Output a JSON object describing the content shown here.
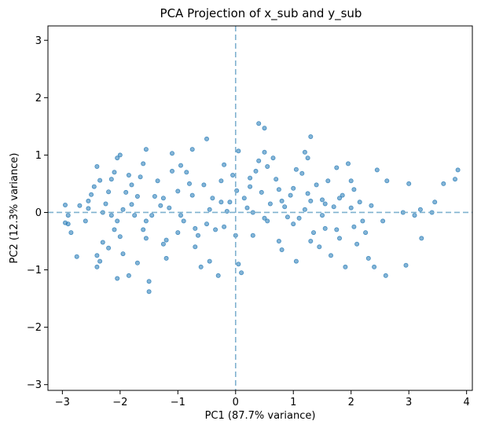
{
  "chart_data": {
    "type": "scatter",
    "title": "PCA Projection of x_sub and y_sub",
    "xlabel": "PC1 (87.7% variance)",
    "ylabel": "PC2 (12.3% variance)",
    "xlim": [
      -3.25,
      4.1
    ],
    "ylim": [
      -3.1,
      3.25
    ],
    "xticks": [
      -3,
      -2,
      -1,
      0,
      1,
      2,
      3,
      4
    ],
    "yticks": [
      -3,
      -2,
      -1,
      0,
      1,
      2,
      3
    ],
    "xtick_labels": [
      "−3",
      "−2",
      "−1",
      "0",
      "1",
      "2",
      "3",
      "4"
    ],
    "ytick_labels": [
      "−3",
      "−2",
      "−1",
      "0",
      "1",
      "2",
      "3"
    ],
    "grid": false,
    "legend": "none",
    "reference_lines": {
      "horizontal_y": 0,
      "vertical_x": 0
    },
    "marker_color": "#1f77b4",
    "reference_line_color": "#7fb1cf",
    "series": [
      {
        "points": [
          [
            -2.95,
            0.13
          ],
          [
            -2.9,
            -0.2
          ],
          [
            -2.85,
            -0.35
          ],
          [
            -2.95,
            -0.18
          ],
          [
            -2.9,
            -0.05
          ],
          [
            -2.75,
            -0.77
          ],
          [
            -2.6,
            -0.15
          ],
          [
            -2.55,
            0.07
          ],
          [
            -2.5,
            0.31
          ],
          [
            -2.45,
            0.45
          ],
          [
            -2.4,
            0.8
          ],
          [
            -2.35,
            0.56
          ],
          [
            -2.4,
            -0.95
          ],
          [
            -2.35,
            -0.85
          ],
          [
            -2.4,
            -0.75
          ],
          [
            -2.3,
            -0.52
          ],
          [
            -2.3,
            0.0
          ],
          [
            -2.25,
            0.15
          ],
          [
            -2.2,
            0.36
          ],
          [
            -2.15,
            0.58
          ],
          [
            -2.1,
            0.7
          ],
          [
            -2.05,
            0.95
          ],
          [
            -2.0,
            1.0
          ],
          [
            -2.1,
            -0.3
          ],
          [
            -2.05,
            -0.15
          ],
          [
            -2.0,
            -0.42
          ],
          [
            -1.95,
            0.05
          ],
          [
            -1.9,
            0.35
          ],
          [
            -1.85,
            0.65
          ],
          [
            -1.8,
            0.48
          ],
          [
            -2.05,
            -1.15
          ],
          [
            -1.85,
            -1.1
          ],
          [
            -1.75,
            -0.05
          ],
          [
            -1.7,
            0.28
          ],
          [
            -1.65,
            0.62
          ],
          [
            -1.6,
            0.85
          ],
          [
            -1.55,
            1.1
          ],
          [
            -1.6,
            -0.3
          ],
          [
            -1.55,
            -0.45
          ],
          [
            -1.5,
            -1.2
          ],
          [
            -1.5,
            -1.38
          ],
          [
            -1.4,
            0.28
          ],
          [
            -1.35,
            0.55
          ],
          [
            -1.3,
            0.12
          ],
          [
            -1.25,
            -0.55
          ],
          [
            -1.2,
            -0.8
          ],
          [
            -1.15,
            0.08
          ],
          [
            -1.1,
            0.72
          ],
          [
            -1.1,
            1.03
          ],
          [
            -1.0,
            0.37
          ],
          [
            -0.95,
            -0.05
          ],
          [
            -0.9,
            -0.15
          ],
          [
            -0.85,
            0.7
          ],
          [
            -0.8,
            0.5
          ],
          [
            -0.75,
            1.1
          ],
          [
            -0.7,
            -0.28
          ],
          [
            -0.65,
            -0.4
          ],
          [
            -0.6,
            -0.95
          ],
          [
            -0.55,
            0.48
          ],
          [
            -0.5,
            1.28
          ],
          [
            -0.45,
            0.05
          ],
          [
            -0.4,
            0.25
          ],
          [
            -0.35,
            -0.3
          ],
          [
            -0.3,
            -1.1
          ],
          [
            -0.25,
            0.55
          ],
          [
            -0.2,
            0.83
          ],
          [
            -0.15,
            0.02
          ],
          [
            -0.1,
            0.18
          ],
          [
            -0.05,
            0.65
          ],
          [
            0.02,
            0.38
          ],
          [
            0.05,
            -0.9
          ],
          [
            0.1,
            -1.05
          ],
          [
            0.15,
            0.25
          ],
          [
            0.2,
            0.08
          ],
          [
            0.25,
            0.45
          ],
          [
            0.3,
            -0.4
          ],
          [
            0.35,
            0.72
          ],
          [
            0.4,
            0.9
          ],
          [
            0.45,
            0.35
          ],
          [
            0.5,
            1.05
          ],
          [
            0.55,
            -0.15
          ],
          [
            0.6,
            0.15
          ],
          [
            0.65,
            0.95
          ],
          [
            0.7,
            0.58
          ],
          [
            0.75,
            -0.5
          ],
          [
            0.8,
            0.2
          ],
          [
            0.85,
            0.1
          ],
          [
            0.9,
            -0.08
          ],
          [
            0.95,
            0.3
          ],
          [
            1.0,
            0.42
          ],
          [
            1.05,
            -0.85
          ],
          [
            1.1,
            -0.1
          ],
          [
            1.15,
            0.68
          ],
          [
            1.2,
            0.05
          ],
          [
            1.25,
            0.95
          ],
          [
            1.3,
            0.2
          ],
          [
            1.35,
            -0.35
          ],
          [
            1.4,
            0.48
          ],
          [
            1.45,
            -0.6
          ],
          [
            1.5,
            0.22
          ],
          [
            1.55,
            -0.28
          ],
          [
            1.6,
            0.55
          ],
          [
            1.65,
            -0.75
          ],
          [
            1.7,
            0.1
          ],
          [
            1.75,
            0.78
          ],
          [
            1.8,
            -0.45
          ],
          [
            1.85,
            0.3
          ],
          [
            1.9,
            -0.95
          ],
          [
            1.95,
            0.85
          ],
          [
            2.0,
            0.08
          ],
          [
            2.05,
            0.4
          ],
          [
            2.1,
            -0.55
          ],
          [
            2.15,
            0.18
          ],
          [
            2.2,
            -0.15
          ],
          [
            2.25,
            -0.35
          ],
          [
            2.3,
            -0.8
          ],
          [
            2.35,
            0.12
          ],
          [
            2.4,
            -0.95
          ],
          [
            2.45,
            0.74
          ],
          [
            2.55,
            -0.15
          ],
          [
            2.6,
            -1.1
          ],
          [
            2.62,
            0.55
          ],
          [
            2.9,
            0.0
          ],
          [
            2.95,
            -0.92
          ],
          [
            3.0,
            0.5
          ],
          [
            3.1,
            -0.05
          ],
          [
            3.2,
            0.05
          ],
          [
            3.22,
            -0.45
          ],
          [
            3.4,
            0.0
          ],
          [
            3.45,
            0.18
          ],
          [
            3.6,
            0.5
          ],
          [
            3.8,
            0.58
          ],
          [
            3.85,
            0.74
          ],
          [
            -2.7,
            0.12
          ],
          [
            -2.55,
            0.2
          ],
          [
            -2.2,
            -0.62
          ],
          [
            -1.95,
            -0.72
          ],
          [
            -1.7,
            -0.88
          ],
          [
            -1.45,
            -0.05
          ],
          [
            -1.2,
            -0.48
          ],
          [
            -0.95,
            0.82
          ],
          [
            -0.7,
            -0.6
          ],
          [
            -0.45,
            -0.85
          ],
          [
            -0.2,
            -0.25
          ],
          [
            0.05,
            1.07
          ],
          [
            0.3,
            0.0
          ],
          [
            0.55,
            0.8
          ],
          [
            0.8,
            -0.65
          ],
          [
            1.05,
            0.75
          ],
          [
            1.3,
            -0.5
          ],
          [
            1.55,
            0.15
          ],
          [
            1.8,
            0.25
          ],
          [
            2.05,
            -0.25
          ],
          [
            -2.15,
            -0.05
          ],
          [
            -1.8,
            0.14
          ],
          [
            -1.55,
            -0.15
          ],
          [
            -1.25,
            0.25
          ],
          [
            -1.0,
            -0.35
          ],
          [
            -0.75,
            0.3
          ],
          [
            -0.5,
            -0.2
          ],
          [
            -0.25,
            0.18
          ],
          [
            0.0,
            -0.4
          ],
          [
            0.25,
            0.6
          ],
          [
            0.5,
            -0.1
          ],
          [
            0.75,
            0.4
          ],
          [
            1.0,
            -0.2
          ],
          [
            1.25,
            0.33
          ],
          [
            1.5,
            -0.05
          ],
          [
            1.75,
            -0.3
          ],
          [
            2.0,
            0.55
          ],
          [
            0.4,
            1.55
          ],
          [
            0.5,
            1.47
          ],
          [
            1.3,
            1.32
          ],
          [
            1.2,
            1.05
          ]
        ]
      }
    ]
  }
}
